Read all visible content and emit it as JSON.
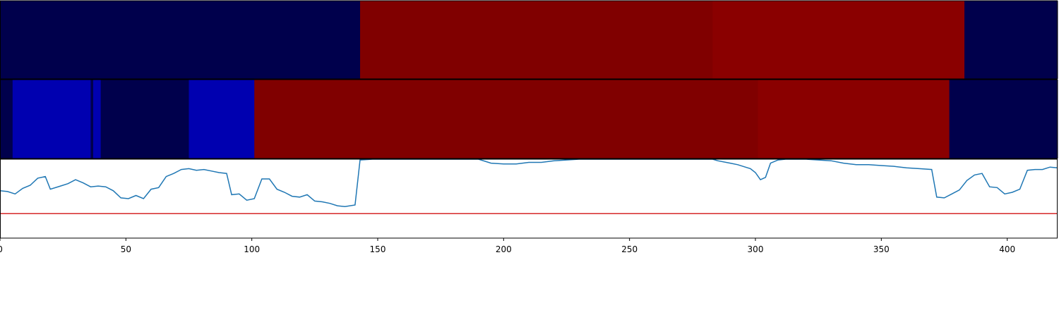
{
  "chart_data": [
    {
      "type": "heatmap",
      "x_range": [
        0,
        420
      ],
      "segments": [
        {
          "start": 0,
          "end": 143,
          "color": "#00004c"
        },
        {
          "start": 143,
          "end": 283,
          "color": "#800000"
        },
        {
          "start": 283,
          "end": 383,
          "color": "#8a0000"
        },
        {
          "start": 383,
          "end": 420,
          "color": "#00004c"
        }
      ]
    },
    {
      "type": "heatmap",
      "x_range": [
        0,
        420
      ],
      "segments": [
        {
          "start": 0,
          "end": 5,
          "color": "#00004c"
        },
        {
          "start": 5,
          "end": 36,
          "color": "#0000b0"
        },
        {
          "start": 36,
          "end": 37,
          "color": "#00004c"
        },
        {
          "start": 37,
          "end": 40,
          "color": "#0000b0"
        },
        {
          "start": 40,
          "end": 75,
          "color": "#00004c"
        },
        {
          "start": 75,
          "end": 101,
          "color": "#0000b0"
        },
        {
          "start": 101,
          "end": 301,
          "color": "#800000"
        },
        {
          "start": 301,
          "end": 377,
          "color": "#8a0000"
        },
        {
          "start": 377,
          "end": 420,
          "color": "#00004c"
        }
      ]
    },
    {
      "type": "line",
      "xlim": [
        0,
        420
      ],
      "ylim": [
        0,
        1
      ],
      "xticks": [
        0,
        50,
        100,
        150,
        200,
        250,
        300,
        350,
        400
      ],
      "line_color": "#1f77b4",
      "threshold": 0.31,
      "threshold_color": "#d62728",
      "points": [
        [
          0,
          0.6
        ],
        [
          3,
          0.59
        ],
        [
          6,
          0.56
        ],
        [
          9,
          0.63
        ],
        [
          12,
          0.67
        ],
        [
          15,
          0.76
        ],
        [
          18,
          0.78
        ],
        [
          20,
          0.62
        ],
        [
          24,
          0.66
        ],
        [
          27,
          0.69
        ],
        [
          30,
          0.74
        ],
        [
          33,
          0.7
        ],
        [
          36,
          0.65
        ],
        [
          39,
          0.66
        ],
        [
          42,
          0.65
        ],
        [
          45,
          0.6
        ],
        [
          48,
          0.51
        ],
        [
          51,
          0.5
        ],
        [
          54,
          0.54
        ],
        [
          57,
          0.5
        ],
        [
          60,
          0.62
        ],
        [
          63,
          0.64
        ],
        [
          66,
          0.78
        ],
        [
          69,
          0.82
        ],
        [
          72,
          0.87
        ],
        [
          75,
          0.88
        ],
        [
          78,
          0.86
        ],
        [
          81,
          0.87
        ],
        [
          84,
          0.85
        ],
        [
          87,
          0.83
        ],
        [
          90,
          0.82
        ],
        [
          92,
          0.55
        ],
        [
          95,
          0.56
        ],
        [
          98,
          0.48
        ],
        [
          101,
          0.5
        ],
        [
          104,
          0.75
        ],
        [
          107,
          0.75
        ],
        [
          110,
          0.62
        ],
        [
          113,
          0.58
        ],
        [
          116,
          0.53
        ],
        [
          119,
          0.52
        ],
        [
          122,
          0.55
        ],
        [
          125,
          0.47
        ],
        [
          128,
          0.46
        ],
        [
          131,
          0.44
        ],
        [
          134,
          0.41
        ],
        [
          137,
          0.4
        ],
        [
          141,
          0.42
        ],
        [
          143,
          0.99
        ],
        [
          148,
          1.0
        ],
        [
          155,
          1.0
        ],
        [
          160,
          1.0
        ],
        [
          165,
          1.0
        ],
        [
          170,
          1.0
        ],
        [
          175,
          1.0
        ],
        [
          180,
          1.0
        ],
        [
          185,
          1.0
        ],
        [
          190,
          1.0
        ],
        [
          195,
          0.95
        ],
        [
          200,
          0.94
        ],
        [
          205,
          0.94
        ],
        [
          210,
          0.96
        ],
        [
          215,
          0.96
        ],
        [
          220,
          0.98
        ],
        [
          225,
          0.99
        ],
        [
          230,
          1.0
        ],
        [
          240,
          1.0
        ],
        [
          250,
          1.0
        ],
        [
          260,
          1.0
        ],
        [
          270,
          1.0
        ],
        [
          280,
          1.0
        ],
        [
          283,
          1.0
        ],
        [
          285,
          0.98
        ],
        [
          290,
          0.95
        ],
        [
          293,
          0.93
        ],
        [
          296,
          0.9
        ],
        [
          298,
          0.88
        ],
        [
          300,
          0.83
        ],
        [
          302,
          0.74
        ],
        [
          304,
          0.77
        ],
        [
          306,
          0.95
        ],
        [
          309,
          0.99
        ],
        [
          312,
          1.0
        ],
        [
          320,
          1.0
        ],
        [
          325,
          0.99
        ],
        [
          330,
          0.98
        ],
        [
          335,
          0.95
        ],
        [
          340,
          0.93
        ],
        [
          345,
          0.93
        ],
        [
          350,
          0.92
        ],
        [
          355,
          0.91
        ],
        [
          360,
          0.89
        ],
        [
          365,
          0.88
        ],
        [
          370,
          0.87
        ],
        [
          372,
          0.52
        ],
        [
          375,
          0.51
        ],
        [
          378,
          0.56
        ],
        [
          381,
          0.61
        ],
        [
          384,
          0.73
        ],
        [
          387,
          0.8
        ],
        [
          390,
          0.82
        ],
        [
          393,
          0.65
        ],
        [
          396,
          0.64
        ],
        [
          399,
          0.56
        ],
        [
          402,
          0.58
        ],
        [
          405,
          0.62
        ],
        [
          408,
          0.86
        ],
        [
          411,
          0.87
        ],
        [
          414,
          0.87
        ],
        [
          417,
          0.9
        ],
        [
          420,
          0.89
        ]
      ]
    }
  ]
}
